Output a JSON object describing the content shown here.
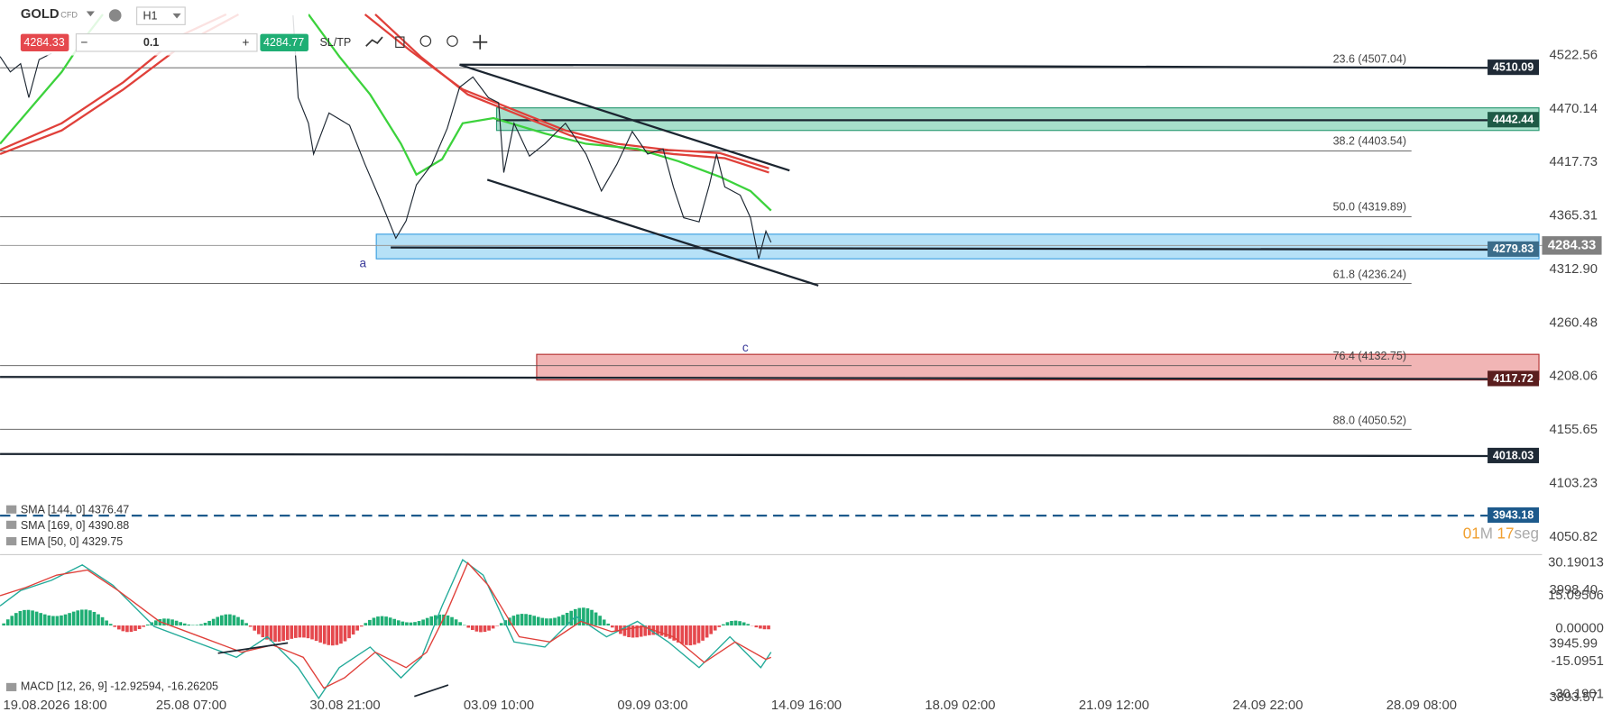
{
  "toolbar": {
    "symbol": "GOLD",
    "instrument_type": "CFD",
    "timeframe": "H1",
    "sell_price": "4284.33",
    "quantity": "0.1",
    "buy_price": "4284.77",
    "sl_tp": "SL/TP"
  },
  "price_axis": [
    "4522.56",
    "4470.14",
    "4417.73",
    "4365.31",
    "4312.90",
    "4260.48",
    "4208.06",
    "4155.65",
    "4103.23",
    "4050.82",
    "3998.40",
    "3945.99",
    "3893.57"
  ],
  "level_tags": [
    "4510.09",
    "4442.44",
    "4279.83",
    "4117.72",
    "4018.03",
    "3943.18"
  ],
  "current_price": "4284.33",
  "fib_levels": [
    "23.6 (4507.04)",
    "38.2 (4403.54)",
    "50.0 (4319.89)",
    "61.8 (4236.24)",
    "76.4 (4132.75)",
    "88.0 (4050.52)"
  ],
  "wave_labels": [
    "a",
    "c"
  ],
  "indicators": [
    "SMA [144, 0] 4376.47",
    "SMA [169, 0] 4390.88",
    "EMA [50, 0] 4329.75"
  ],
  "timer": {
    "minutes": "01",
    "minutes_unit": "M",
    "seconds": "17",
    "seconds_unit": "seg"
  },
  "macd": {
    "label": "MACD [12, 26, 9] -12.92594, -16.26205",
    "axis": [
      "30.19013",
      "15.09506",
      "0.00000",
      "-15.0951",
      "-30.1901"
    ]
  },
  "time_axis": [
    "19.08.2026 18:00",
    "25.08 07:00",
    "30.08 21:00",
    "03.09 10:00",
    "09.09 03:00",
    "14.09 16:00",
    "18.09 02:00",
    "21.09 12:00",
    "24.09 22:00",
    "28.09 08:00"
  ]
}
